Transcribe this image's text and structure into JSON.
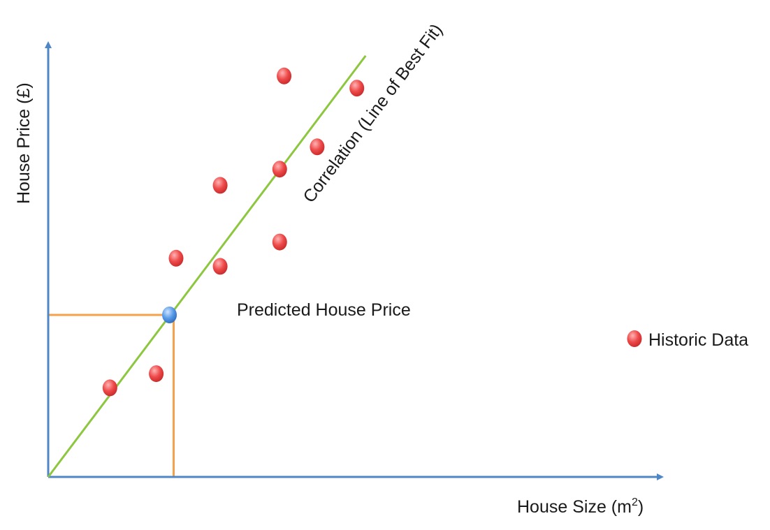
{
  "chart_data": {
    "type": "scatter",
    "xlabel": "House Size (m",
    "xlabel_sup": "2",
    "xlabel_tail": ")",
    "ylabel": "House Price (£)",
    "xlim": [
      0,
      100
    ],
    "ylim": [
      0,
      100
    ],
    "grid": false,
    "ticks": false,
    "series": [
      {
        "name": "Historic Data",
        "color": "#ee3b3b",
        "points": [
          {
            "x": 14,
            "y": 22
          },
          {
            "x": 24.5,
            "y": 25.5
          },
          {
            "x": 29,
            "y": 54
          },
          {
            "x": 39,
            "y": 52
          },
          {
            "x": 39,
            "y": 72
          },
          {
            "x": 52.5,
            "y": 58
          },
          {
            "x": 52.5,
            "y": 76
          },
          {
            "x": 53.5,
            "y": 99
          },
          {
            "x": 61,
            "y": 81.5
          },
          {
            "x": 70,
            "y": 96
          }
        ]
      }
    ],
    "trendline": {
      "label": "Correlation (Line of Best Fit)",
      "color": "#8dc63f",
      "from": {
        "x": 0,
        "y": 0
      },
      "to": {
        "x": 72,
        "y": 104
      }
    },
    "prediction": {
      "label": "Predicted House Price",
      "color": "#4a90e2",
      "guide_color": "#f5a04a",
      "x": 27.5,
      "y": 40
    },
    "legend": {
      "placement": "right",
      "label": "Historic Data"
    },
    "colors": {
      "axis": "#4f86c6"
    }
  }
}
